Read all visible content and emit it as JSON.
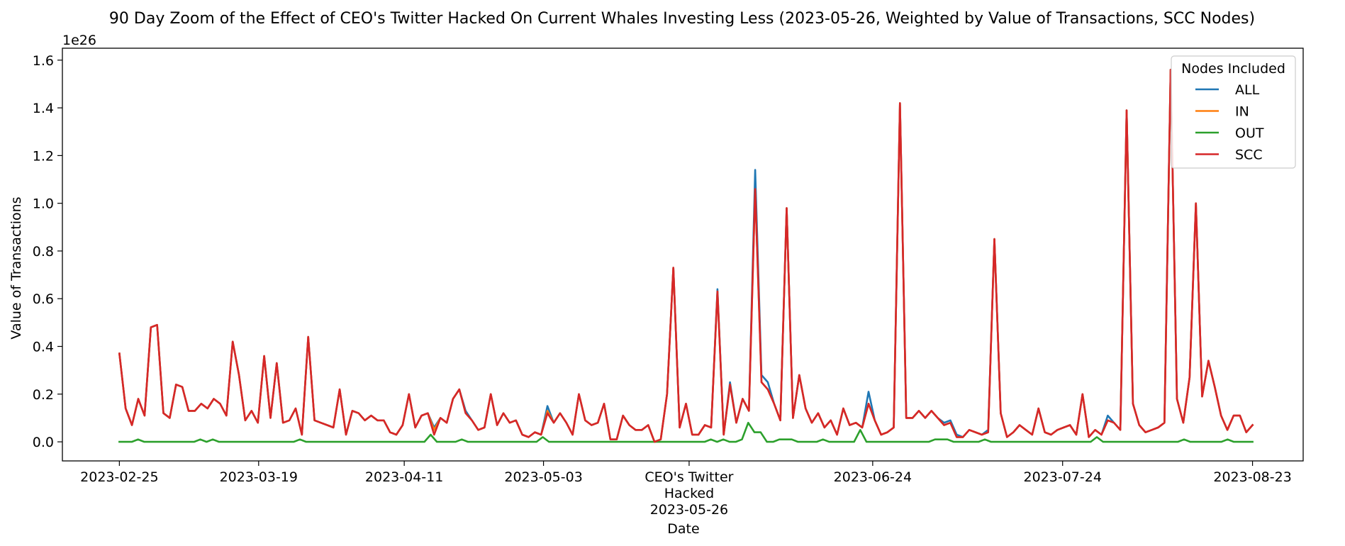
{
  "chart_data": {
    "type": "line",
    "title": "90 Day Zoom of the Effect of CEO's Twitter Hacked On Current Whales Investing Less (2023-05-26, Weighted by Value of Transactions, SCC Nodes)",
    "xlabel": "Date",
    "ylabel": "Value of Transactions",
    "y_multiplier": "1e26",
    "y_scale": 1e+26,
    "ylim": [
      -0.08,
      1.65
    ],
    "xlim": [
      "2023-02-16",
      "2023-08-31"
    ],
    "yticks": [
      0.0,
      0.2,
      0.4,
      0.6,
      0.8,
      1.0,
      1.2,
      1.4,
      1.6
    ],
    "ytick_labels": [
      "0.0",
      "0.2",
      "0.4",
      "0.6",
      "0.8",
      "1.0",
      "1.2",
      "1.4",
      "1.6"
    ],
    "xticks": [
      {
        "date": "2023-02-25",
        "label": "2023-02-25"
      },
      {
        "date": "2023-03-19",
        "label": "2023-03-19"
      },
      {
        "date": "2023-04-11",
        "label": "2023-04-11"
      },
      {
        "date": "2023-05-03",
        "label": "2023-05-03"
      },
      {
        "date": "2023-05-26",
        "label": "CEO's Twitter\nHacked\n2023-05-26"
      },
      {
        "date": "2023-06-24",
        "label": "2023-06-24"
      },
      {
        "date": "2023-07-24",
        "label": "2023-07-24"
      },
      {
        "date": "2023-08-23",
        "label": "2023-08-23"
      }
    ],
    "legend": {
      "title": "Nodes Included",
      "placement": "upper right"
    },
    "grid": false,
    "x_start_date": "2023-02-25",
    "x_end_date": "2023-08-23",
    "series": [
      {
        "name": "ALL",
        "color": "#1f77b4",
        "values": [
          0.37,
          0.14,
          0.07,
          0.18,
          0.11,
          0.48,
          0.49,
          0.12,
          0.1,
          0.24,
          0.23,
          0.13,
          0.13,
          0.16,
          0.14,
          0.18,
          0.16,
          0.11,
          0.42,
          0.28,
          0.09,
          0.13,
          0.08,
          0.36,
          0.1,
          0.33,
          0.08,
          0.09,
          0.14,
          0.03,
          0.44,
          0.09,
          0.08,
          0.07,
          0.06,
          0.22,
          0.03,
          0.13,
          0.12,
          0.09,
          0.11,
          0.09,
          0.09,
          0.04,
          0.03,
          0.07,
          0.2,
          0.06,
          0.11,
          0.12,
          0.06,
          0.1,
          0.08,
          0.18,
          0.22,
          0.13,
          0.09,
          0.05,
          0.06,
          0.2,
          0.07,
          0.12,
          0.08,
          0.09,
          0.03,
          0.02,
          0.04,
          0.03,
          0.15,
          0.08,
          0.12,
          0.08,
          0.03,
          0.2,
          0.09,
          0.07,
          0.08,
          0.16,
          0.01,
          0.01,
          0.11,
          0.07,
          0.05,
          0.05,
          0.07,
          0.0,
          0.01,
          0.2,
          0.73,
          0.06,
          0.16,
          0.03,
          0.03,
          0.07,
          0.06,
          0.64,
          0.03,
          0.25,
          0.08,
          0.18,
          0.13,
          1.14,
          0.28,
          0.25,
          0.16,
          0.09,
          0.98,
          0.1,
          0.28,
          0.14,
          0.08,
          0.12,
          0.06,
          0.09,
          0.03,
          0.14,
          0.07,
          0.08,
          0.06,
          0.21,
          0.09,
          0.03,
          0.04,
          0.06,
          1.42,
          0.1,
          0.1,
          0.13,
          0.1,
          0.13,
          0.1,
          0.08,
          0.09,
          0.03,
          0.02,
          0.05,
          0.04,
          0.03,
          0.05,
          0.85,
          0.12,
          0.02,
          0.04,
          0.07,
          0.05,
          0.03,
          0.14,
          0.04,
          0.03,
          0.05,
          0.06,
          0.07,
          0.03,
          0.2,
          0.02,
          0.05,
          0.03,
          0.11,
          0.08,
          0.05,
          1.39,
          0.16,
          0.07,
          0.04,
          0.05,
          0.06,
          0.08,
          1.56,
          0.18,
          0.08,
          0.27,
          1.0,
          0.19,
          0.34,
          0.23,
          0.11,
          0.05,
          0.11,
          0.11,
          0.04,
          0.07
        ]
      },
      {
        "name": "IN",
        "color": "#ff7f0e",
        "values": [
          0.37,
          0.14,
          0.07,
          0.18,
          0.11,
          0.48,
          0.49,
          0.12,
          0.1,
          0.24,
          0.23,
          0.13,
          0.13,
          0.16,
          0.14,
          0.18,
          0.16,
          0.11,
          0.42,
          0.28,
          0.09,
          0.13,
          0.08,
          0.36,
          0.1,
          0.33,
          0.08,
          0.09,
          0.14,
          0.03,
          0.44,
          0.09,
          0.08,
          0.07,
          0.06,
          0.22,
          0.03,
          0.13,
          0.12,
          0.09,
          0.11,
          0.09,
          0.09,
          0.04,
          0.03,
          0.07,
          0.2,
          0.06,
          0.11,
          0.12,
          0.05,
          0.1,
          0.08,
          0.18,
          0.22,
          0.12,
          0.09,
          0.05,
          0.06,
          0.2,
          0.07,
          0.12,
          0.08,
          0.09,
          0.03,
          0.02,
          0.04,
          0.03,
          0.13,
          0.08,
          0.12,
          0.08,
          0.03,
          0.2,
          0.09,
          0.07,
          0.08,
          0.16,
          0.01,
          0.01,
          0.11,
          0.07,
          0.05,
          0.05,
          0.07,
          0.0,
          0.01,
          0.2,
          0.73,
          0.06,
          0.16,
          0.03,
          0.03,
          0.07,
          0.06,
          0.63,
          0.03,
          0.24,
          0.08,
          0.18,
          0.13,
          1.06,
          0.25,
          0.22,
          0.16,
          0.09,
          0.98,
          0.1,
          0.28,
          0.14,
          0.08,
          0.12,
          0.06,
          0.09,
          0.03,
          0.14,
          0.07,
          0.08,
          0.06,
          0.16,
          0.09,
          0.03,
          0.04,
          0.06,
          1.42,
          0.1,
          0.1,
          0.13,
          0.1,
          0.13,
          0.1,
          0.07,
          0.08,
          0.02,
          0.02,
          0.05,
          0.04,
          0.03,
          0.04,
          0.85,
          0.12,
          0.02,
          0.04,
          0.07,
          0.05,
          0.03,
          0.14,
          0.04,
          0.03,
          0.05,
          0.06,
          0.07,
          0.03,
          0.2,
          0.02,
          0.05,
          0.03,
          0.09,
          0.08,
          0.05,
          1.39,
          0.16,
          0.07,
          0.04,
          0.05,
          0.06,
          0.08,
          1.56,
          0.18,
          0.08,
          0.27,
          1.0,
          0.19,
          0.34,
          0.23,
          0.11,
          0.05,
          0.11,
          0.11,
          0.04,
          0.07
        ]
      },
      {
        "name": "OUT",
        "color": "#2ca02c",
        "values": [
          0.0,
          0.0,
          0.0,
          0.01,
          0.0,
          0.0,
          0.0,
          0.0,
          0.0,
          0.0,
          0.0,
          0.0,
          0.0,
          0.01,
          0.0,
          0.01,
          0.0,
          0.0,
          0.0,
          0.0,
          0.0,
          0.0,
          0.0,
          0.0,
          0.0,
          0.0,
          0.0,
          0.0,
          0.0,
          0.01,
          0.0,
          0.0,
          0.0,
          0.0,
          0.0,
          0.0,
          0.0,
          0.0,
          0.0,
          0.0,
          0.0,
          0.0,
          0.0,
          0.0,
          0.0,
          0.0,
          0.0,
          0.0,
          0.0,
          0.0,
          0.03,
          0.0,
          0.0,
          0.0,
          0.0,
          0.01,
          0.0,
          0.0,
          0.0,
          0.0,
          0.0,
          0.0,
          0.0,
          0.0,
          0.0,
          0.0,
          0.0,
          0.0,
          0.02,
          0.0,
          0.0,
          0.0,
          0.0,
          0.0,
          0.0,
          0.0,
          0.0,
          0.0,
          0.0,
          0.0,
          0.0,
          0.0,
          0.0,
          0.0,
          0.0,
          0.0,
          0.0,
          0.0,
          0.0,
          0.0,
          0.0,
          0.0,
          0.0,
          0.0,
          0.0,
          0.01,
          0.0,
          0.01,
          0.0,
          0.0,
          0.01,
          0.08,
          0.04,
          0.04,
          0.0,
          0.0,
          0.01,
          0.01,
          0.01,
          0.0,
          0.0,
          0.0,
          0.0,
          0.01,
          0.0,
          0.0,
          0.0,
          0.0,
          0.0,
          0.05,
          0.0,
          0.0,
          0.0,
          0.0,
          0.0,
          0.0,
          0.0,
          0.0,
          0.0,
          0.0,
          0.0,
          0.01,
          0.01,
          0.01,
          0.0,
          0.0,
          0.0,
          0.0,
          0.0,
          0.01,
          0.0,
          0.0,
          0.0,
          0.0,
          0.0,
          0.0,
          0.0,
          0.0,
          0.0,
          0.0,
          0.0,
          0.0,
          0.0,
          0.0,
          0.0,
          0.0,
          0.0,
          0.02,
          0.0,
          0.0,
          0.0,
          0.0,
          0.0,
          0.0,
          0.0,
          0.0,
          0.0,
          0.0,
          0.0,
          0.0,
          0.0,
          0.01,
          0.0,
          0.0,
          0.0,
          0.0,
          0.0,
          0.0,
          0.01,
          0.0,
          0.0,
          0.0,
          0.0
        ]
      },
      {
        "name": "SCC",
        "color": "#d62728",
        "values": [
          0.37,
          0.14,
          0.07,
          0.18,
          0.11,
          0.48,
          0.49,
          0.12,
          0.1,
          0.24,
          0.23,
          0.13,
          0.13,
          0.16,
          0.14,
          0.18,
          0.16,
          0.11,
          0.42,
          0.28,
          0.09,
          0.13,
          0.08,
          0.36,
          0.1,
          0.33,
          0.08,
          0.09,
          0.14,
          0.03,
          0.44,
          0.09,
          0.08,
          0.07,
          0.06,
          0.22,
          0.03,
          0.13,
          0.12,
          0.09,
          0.11,
          0.09,
          0.09,
          0.04,
          0.03,
          0.07,
          0.2,
          0.06,
          0.11,
          0.12,
          0.03,
          0.1,
          0.08,
          0.18,
          0.22,
          0.12,
          0.09,
          0.05,
          0.06,
          0.2,
          0.07,
          0.12,
          0.08,
          0.09,
          0.03,
          0.02,
          0.04,
          0.03,
          0.12,
          0.08,
          0.12,
          0.08,
          0.03,
          0.2,
          0.09,
          0.07,
          0.08,
          0.16,
          0.01,
          0.01,
          0.11,
          0.07,
          0.05,
          0.05,
          0.07,
          0.0,
          0.01,
          0.2,
          0.73,
          0.06,
          0.16,
          0.03,
          0.03,
          0.07,
          0.06,
          0.63,
          0.03,
          0.24,
          0.08,
          0.18,
          0.13,
          1.06,
          0.25,
          0.22,
          0.16,
          0.09,
          0.98,
          0.1,
          0.28,
          0.14,
          0.08,
          0.12,
          0.06,
          0.09,
          0.03,
          0.14,
          0.07,
          0.08,
          0.06,
          0.16,
          0.09,
          0.03,
          0.04,
          0.06,
          1.42,
          0.1,
          0.1,
          0.13,
          0.1,
          0.13,
          0.1,
          0.07,
          0.08,
          0.02,
          0.02,
          0.05,
          0.04,
          0.03,
          0.04,
          0.85,
          0.12,
          0.02,
          0.04,
          0.07,
          0.05,
          0.03,
          0.14,
          0.04,
          0.03,
          0.05,
          0.06,
          0.07,
          0.03,
          0.2,
          0.02,
          0.05,
          0.03,
          0.09,
          0.08,
          0.05,
          1.39,
          0.16,
          0.07,
          0.04,
          0.05,
          0.06,
          0.08,
          1.56,
          0.18,
          0.08,
          0.27,
          1.0,
          0.19,
          0.34,
          0.23,
          0.11,
          0.05,
          0.11,
          0.11,
          0.04,
          0.07
        ]
      }
    ]
  }
}
